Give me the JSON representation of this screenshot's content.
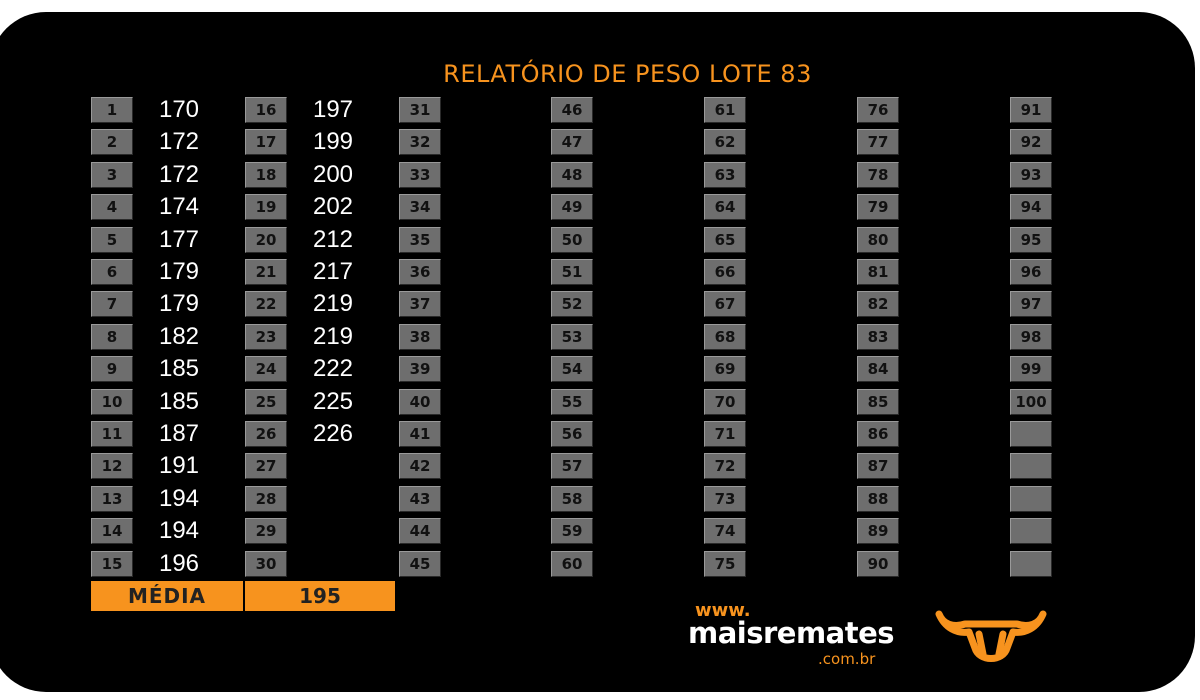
{
  "report": {
    "title": "RELATÓRIO DE PESO LOTE  83",
    "columns": [
      {
        "numbers": [
          "1",
          "2",
          "3",
          "4",
          "5",
          "6",
          "7",
          "8",
          "9",
          "10",
          "11",
          "12",
          "13",
          "14",
          "15"
        ],
        "weights": [
          "170",
          "172",
          "172",
          "174",
          "177",
          "179",
          "179",
          "182",
          "185",
          "185",
          "187",
          "191",
          "194",
          "194",
          "196"
        ]
      },
      {
        "numbers": [
          "16",
          "17",
          "18",
          "19",
          "20",
          "21",
          "22",
          "23",
          "24",
          "25",
          "26",
          "27",
          "28",
          "29",
          "30"
        ],
        "weights": [
          "197",
          "199",
          "200",
          "202",
          "212",
          "217",
          "219",
          "219",
          "222",
          "225",
          "226"
        ]
      },
      {
        "numbers": [
          "31",
          "32",
          "33",
          "34",
          "35",
          "36",
          "37",
          "38",
          "39",
          "40",
          "41",
          "42",
          "43",
          "44",
          "45"
        ],
        "weights": []
      },
      {
        "numbers": [
          "46",
          "47",
          "48",
          "49",
          "50",
          "51",
          "52",
          "53",
          "54",
          "55",
          "56",
          "57",
          "58",
          "59",
          "60"
        ],
        "weights": []
      },
      {
        "numbers": [
          "61",
          "62",
          "63",
          "64",
          "65",
          "66",
          "67",
          "68",
          "69",
          "70",
          "71",
          "72",
          "73",
          "74",
          "75"
        ],
        "weights": []
      },
      {
        "numbers": [
          "76",
          "77",
          "78",
          "79",
          "80",
          "81",
          "82",
          "83",
          "84",
          "85",
          "86",
          "87",
          "88",
          "89",
          "90"
        ],
        "weights": []
      },
      {
        "numbers": [
          "91",
          "92",
          "93",
          "94",
          "95",
          "96",
          "97",
          "98",
          "99",
          "100",
          "",
          "",
          "",
          "",
          ""
        ],
        "weights": []
      }
    ],
    "average": {
      "label": "MÉDIA",
      "value": "195"
    }
  },
  "logo": {
    "www": "www.",
    "name": "maisremates",
    "domain": ".com.br",
    "icon": "bull-head-icon",
    "accent_color": "#f7931e"
  }
}
